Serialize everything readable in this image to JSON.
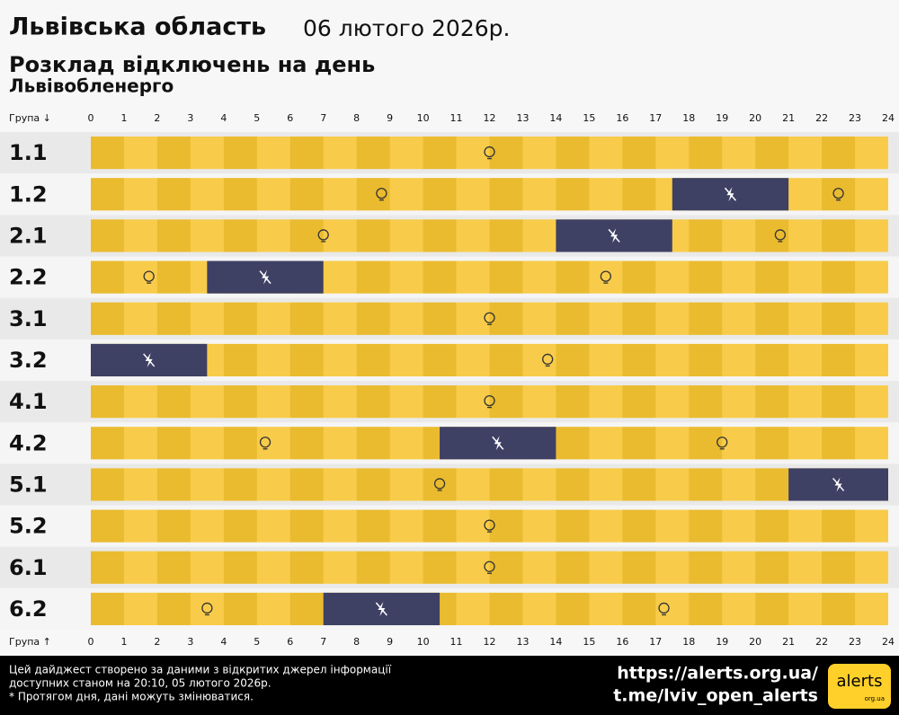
{
  "chart_data": {
    "type": "gantt",
    "title": "Львівська область",
    "date": "06 лютого 2026р.",
    "subtitle": "Розклад відключень на день",
    "source": "Львівобленерго",
    "y_label_top": "Група ↓",
    "y_label_bottom": "Група ↑",
    "xlim": [
      0,
      24
    ],
    "xticks": [
      0,
      1,
      2,
      3,
      4,
      5,
      6,
      7,
      8,
      9,
      10,
      11,
      12,
      13,
      14,
      15,
      16,
      17,
      18,
      19,
      20,
      21,
      22,
      23,
      24
    ],
    "power_color": "#f7c531",
    "outage_color": "#3e4064",
    "rows": [
      {
        "group": "1.1",
        "outages": []
      },
      {
        "group": "1.2",
        "outages": [
          {
            "start": 17.5,
            "end": 21
          }
        ]
      },
      {
        "group": "2.1",
        "outages": [
          {
            "start": 14,
            "end": 17.5
          }
        ]
      },
      {
        "group": "2.2",
        "outages": [
          {
            "start": 3.5,
            "end": 7
          }
        ]
      },
      {
        "group": "3.1",
        "outages": []
      },
      {
        "group": "3.2",
        "outages": [
          {
            "start": 0,
            "end": 3.5
          }
        ]
      },
      {
        "group": "4.1",
        "outages": []
      },
      {
        "group": "4.2",
        "outages": [
          {
            "start": 10.5,
            "end": 14
          }
        ]
      },
      {
        "group": "5.1",
        "outages": [
          {
            "start": 21,
            "end": 24
          }
        ]
      },
      {
        "group": "5.2",
        "outages": []
      },
      {
        "group": "6.1",
        "outages": []
      },
      {
        "group": "6.2",
        "outages": [
          {
            "start": 7,
            "end": 10.5
          }
        ]
      }
    ]
  },
  "footer": {
    "lines": [
      "Цей дайджест створено за даними з відкритих джерел інформації",
      "доступних станом на 20:10, 05 лютого 2026р.",
      "* Протягом дня, дані можуть змінюватися."
    ],
    "links": [
      "https://alerts.org.ua/",
      "t.me/lviv_open_alerts"
    ],
    "logo": "alerts",
    "logo_sub": "org.ua"
  }
}
